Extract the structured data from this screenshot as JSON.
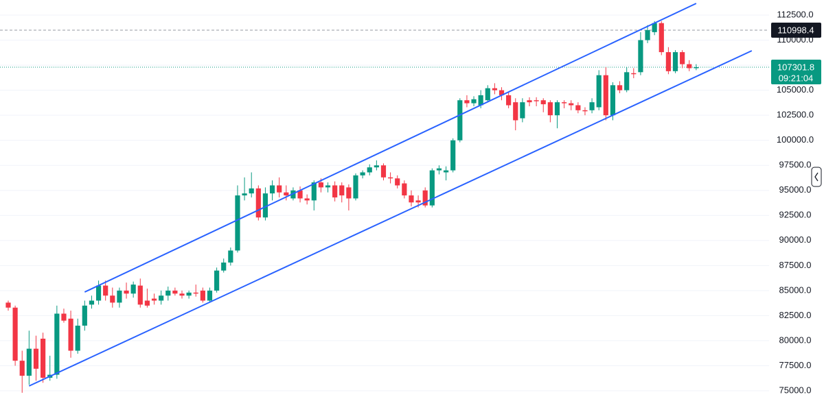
{
  "chart_data": {
    "type": "candlestick",
    "up_color": "#089981",
    "down_color": "#f23645",
    "grid": true,
    "ylim": [
      74179,
      114006
    ],
    "yticks": [
      {
        "value": 75000,
        "label": "75000.0"
      },
      {
        "value": 77500,
        "label": "77500.0"
      },
      {
        "value": 80000,
        "label": "80000.0"
      },
      {
        "value": 82500,
        "label": "82500.0"
      },
      {
        "value": 85000,
        "label": "85000.0"
      },
      {
        "value": 87500,
        "label": "87500.0"
      },
      {
        "value": 90000,
        "label": "90000.0"
      },
      {
        "value": 92500,
        "label": "92500.0"
      },
      {
        "value": 95000,
        "label": "95000.0"
      },
      {
        "value": 97500,
        "label": "97500.0"
      },
      {
        "value": 100000,
        "label": "100000.0"
      },
      {
        "value": 102500,
        "label": "102500.0"
      },
      {
        "value": 105000,
        "label": "105000.0"
      },
      {
        "value": 107500,
        "label": "107500.0"
      },
      {
        "value": 110000,
        "label": "110000.0"
      },
      {
        "value": 112500,
        "label": "112500.0"
      }
    ],
    "open": [
      83800,
      83300,
      78000,
      76500,
      79200,
      80200,
      76300,
      76600,
      82700,
      82200,
      79000,
      81500,
      83600,
      84000,
      85500,
      84500,
      83800,
      85000,
      84700,
      85500,
      84000,
      84200,
      84000,
      84500,
      85000,
      84700,
      84500,
      84800,
      85000,
      84000,
      85000,
      87000,
      87800,
      89000,
      94500,
      94700,
      95200,
      92300,
      94700,
      95500,
      94800,
      94200,
      95000,
      94200,
      94000,
      95800,
      95300,
      95500,
      95500,
      95300,
      94200,
      96500,
      96800,
      97300,
      97500,
      96300,
      96200,
      95700,
      94500,
      94000,
      95000,
      93500,
      97000,
      96800,
      97000,
      100000,
      104000,
      103700,
      103500,
      104000,
      105200,
      105000,
      104500,
      103800,
      102200,
      104000,
      104000,
      104000,
      103800,
      102500,
      103800,
      103700,
      103500,
      103000,
      103000,
      103300,
      106500,
      102500,
      105500,
      105000,
      106700,
      106800,
      110000,
      110800,
      111700,
      108800,
      106900,
      108800,
      107600,
      107200
    ],
    "high": [
      84000,
      83500,
      79000,
      81000,
      80500,
      80800,
      78500,
      83500,
      83200,
      83000,
      82200,
      84000,
      84500,
      86000,
      86000,
      85300,
      85300,
      85800,
      85900,
      86200,
      85200,
      84700,
      85000,
      85400,
      85300,
      85000,
      85000,
      85600,
      85300,
      85300,
      87300,
      88200,
      89300,
      95500,
      96300,
      96800,
      95500,
      95300,
      96000,
      96300,
      95500,
      95300,
      95400,
      94600,
      96000,
      96200,
      95800,
      95900,
      95800,
      95600,
      96700,
      97000,
      97600,
      98000,
      97700,
      96800,
      96500,
      96000,
      95000,
      94500,
      95300,
      97200,
      97500,
      97400,
      100200,
      104200,
      104500,
      104400,
      105000,
      105500,
      105700,
      105300,
      104800,
      104200,
      104200,
      104300,
      104300,
      104200,
      104000,
      104000,
      104000,
      104000,
      103800,
      103300,
      104200,
      107000,
      107300,
      105800,
      105900,
      107300,
      107200,
      110800,
      111500,
      111900,
      111900,
      109300,
      109000,
      109000,
      108000,
      107600
    ],
    "low": [
      83000,
      77500,
      74800,
      75600,
      76000,
      75800,
      76000,
      76200,
      81800,
      78300,
      78700,
      81000,
      83200,
      83600,
      84000,
      83300,
      83300,
      84200,
      84300,
      83300,
      83300,
      83600,
      83600,
      84000,
      84500,
      84200,
      84200,
      84400,
      83800,
      83800,
      84800,
      86800,
      87500,
      88800,
      94000,
      94300,
      92000,
      92000,
      94000,
      94300,
      94000,
      94000,
      93800,
      93600,
      93000,
      94800,
      94800,
      93900,
      93800,
      93000,
      94000,
      96200,
      96500,
      97000,
      96000,
      95700,
      95200,
      94200,
      93400,
      93300,
      93300,
      93300,
      96600,
      96000,
      96800,
      99800,
      103300,
      103400,
      103200,
      103800,
      104600,
      104000,
      103200,
      101000,
      101800,
      103400,
      103400,
      102800,
      101800,
      101200,
      103200,
      103000,
      102700,
      102500,
      102700,
      103000,
      102000,
      102000,
      104700,
      104800,
      106200,
      106500,
      109700,
      110500,
      108500,
      106600,
      106700,
      107200,
      106900,
      107000
    ],
    "close": [
      83300,
      78000,
      76500,
      79200,
      77200,
      76300,
      76600,
      82700,
      82000,
      79000,
      81500,
      83500,
      84000,
      85500,
      84500,
      83800,
      85000,
      84700,
      85600,
      83600,
      83500,
      84000,
      84500,
      85000,
      84700,
      84500,
      84800,
      84700,
      84000,
      85000,
      87000,
      87800,
      89000,
      94500,
      94700,
      95200,
      92300,
      94700,
      95500,
      94800,
      94500,
      95000,
      94200,
      94000,
      95800,
      95300,
      95500,
      94300,
      94500,
      94200,
      96500,
      96800,
      97300,
      97500,
      96300,
      96200,
      95500,
      94500,
      93800,
      93800,
      93500,
      97000,
      97200,
      97000,
      100000,
      104000,
      103700,
      104100,
      104500,
      105200,
      105000,
      104500,
      103500,
      102000,
      103800,
      103800,
      103900,
      103600,
      102500,
      103800,
      103700,
      103500,
      103000,
      102900,
      103800,
      106500,
      102500,
      105500,
      105000,
      106800,
      106600,
      110000,
      111000,
      111700,
      108800,
      106900,
      108800,
      107600,
      107200,
      107301.8
    ],
    "trendlines": [
      {
        "x": [
          11,
          99
        ],
        "y": [
          84854,
          113664
        ],
        "color": "#2962ff"
      },
      {
        "x": [
          3,
          107
        ],
        "y": [
          75479,
          108942
        ],
        "color": "#2962ff"
      }
    ],
    "price_lines": [
      {
        "value": 110998.4,
        "style": "dashed",
        "color": "#131722"
      },
      {
        "value": 107301.8,
        "timer": "09:21:04",
        "style": "dotted",
        "color": "#089981"
      }
    ]
  }
}
